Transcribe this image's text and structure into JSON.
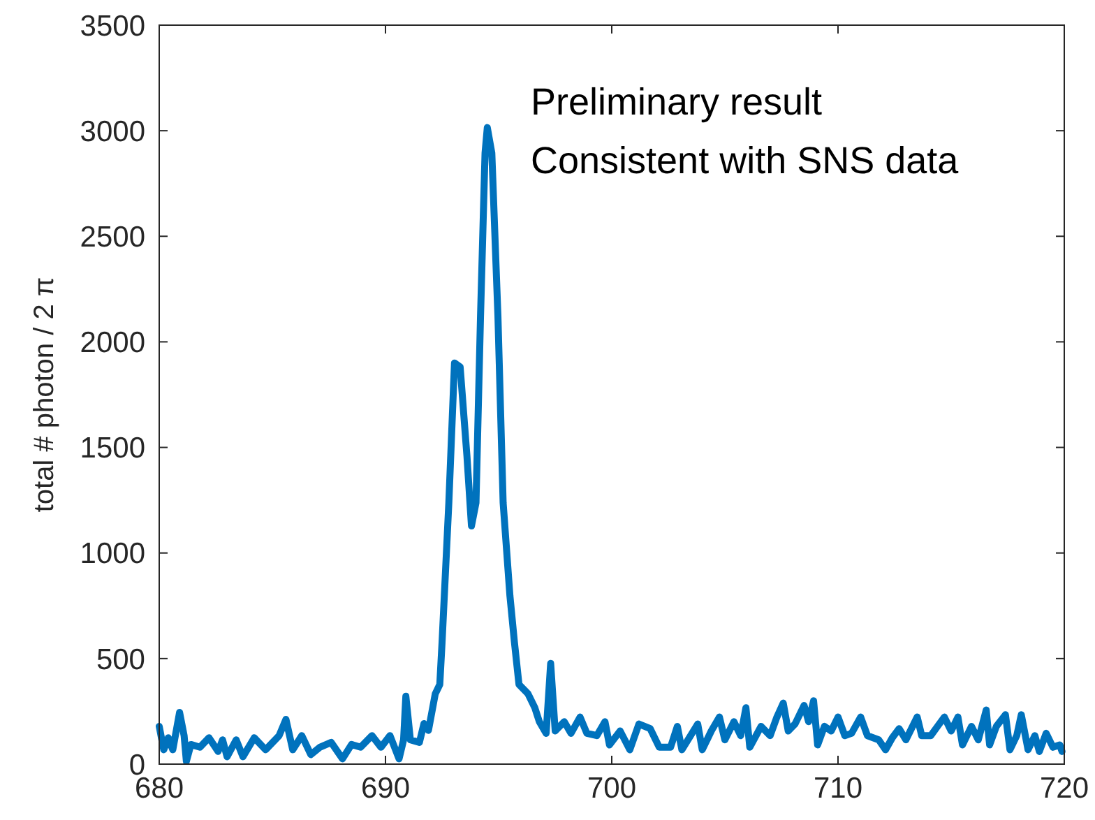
{
  "chart_data": {
    "type": "line",
    "ylabel": "total # photon / 2 π",
    "xlim": [
      680,
      720
    ],
    "xticks": [
      680,
      690,
      700,
      710,
      720
    ],
    "ylim": [
      0,
      3500
    ],
    "yticks": [
      0,
      500,
      1000,
      1500,
      2000,
      2500,
      3000,
      3500
    ],
    "grid": false,
    "marker": "none",
    "line_style": "solid",
    "annotations": [
      "Preliminary result",
      "Consistent with SNS data"
    ],
    "series": [
      {
        "color": "#0072bd",
        "x": [
          680.0,
          680.2,
          680.4,
          680.6,
          680.9,
          681.1,
          681.2,
          681.4,
          681.8,
          682.2,
          682.6,
          682.8,
          683.0,
          683.4,
          683.7,
          684.2,
          684.7,
          685.3,
          685.6,
          685.9,
          686.3,
          686.7,
          687.1,
          687.6,
          688.1,
          688.5,
          688.9,
          689.4,
          689.8,
          690.2,
          690.6,
          690.8,
          690.9,
          691.1,
          691.5,
          691.7,
          691.9,
          692.2,
          692.3,
          692.4,
          692.5,
          692.8,
          693.05,
          693.3,
          693.6,
          693.8,
          694.0,
          694.2,
          694.4,
          694.5,
          694.7,
          694.97,
          695.2,
          695.5,
          695.7,
          695.9,
          696.3,
          696.6,
          696.8,
          697.1,
          697.3,
          697.5,
          697.9,
          698.2,
          698.6,
          698.9,
          699.34,
          699.7,
          699.9,
          700.37,
          700.8,
          701.2,
          701.7,
          702.1,
          702.6,
          702.9,
          703.1,
          703.8,
          704.0,
          704.4,
          704.76,
          705.0,
          705.4,
          705.7,
          705.93,
          706.1,
          706.6,
          707.0,
          707.3,
          707.58,
          707.8,
          708.1,
          708.5,
          708.7,
          708.92,
          709.1,
          709.4,
          709.7,
          710.0,
          710.3,
          710.6,
          711.0,
          711.3,
          711.8,
          712.1,
          712.4,
          712.7,
          713.0,
          713.5,
          713.7,
          714.1,
          714.4,
          714.7,
          715.0,
          715.3,
          715.5,
          715.9,
          716.2,
          716.55,
          716.7,
          717.0,
          717.4,
          717.6,
          717.9,
          718.1,
          718.4,
          718.7,
          718.9,
          719.2,
          719.5,
          719.8,
          719.9
        ],
        "values": [
          179,
          68,
          125,
          68,
          245,
          135,
          13,
          93,
          80,
          125,
          60,
          115,
          35,
          115,
          35,
          125,
          68,
          135,
          212,
          68,
          135,
          45,
          80,
          103,
          25,
          93,
          80,
          135,
          80,
          135,
          25,
          115,
          322,
          115,
          103,
          192,
          160,
          333,
          355,
          377,
          576,
          1238,
          1900,
          1881,
          1459,
          1128,
          1238,
          2121,
          2894,
          3015,
          2894,
          2121,
          1238,
          797,
          576,
          377,
          333,
          267,
          201,
          146,
          477,
          157,
          201,
          146,
          223,
          146,
          135,
          201,
          91,
          157,
          68,
          190,
          168,
          80,
          80,
          179,
          68,
          190,
          68,
          157,
          223,
          115,
          201,
          135,
          267,
          80,
          179,
          135,
          223,
          289,
          157,
          190,
          278,
          201,
          300,
          91,
          179,
          157,
          223,
          135,
          146,
          223,
          135,
          115,
          68,
          125,
          168,
          115,
          223,
          135,
          135,
          179,
          223,
          157,
          223,
          91,
          179,
          115,
          256,
          91,
          179,
          234,
          68,
          135,
          234,
          68,
          135,
          60,
          146,
          80,
          91,
          60
        ]
      }
    ]
  }
}
